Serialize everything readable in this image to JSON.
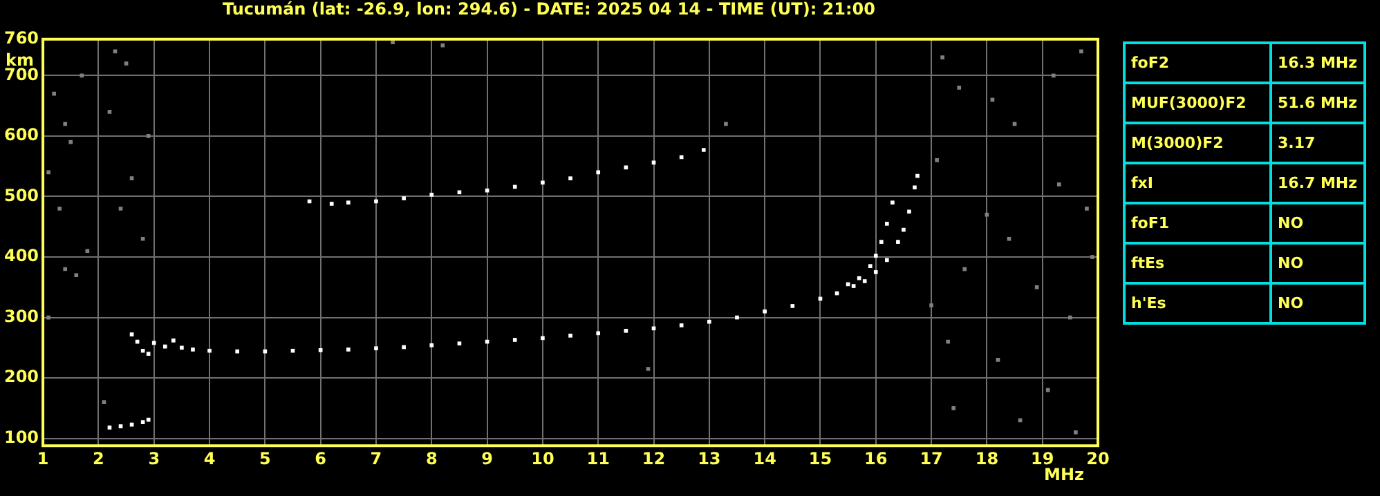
{
  "chart_data": [
    {
      "type": "scatter",
      "title": "Tucumán (lat: -26.9, lon: 294.6) - DATE: 2025 04 14 - TIME (UT): 21:00",
      "xlabel": "MHz",
      "ylabel": "km",
      "xlim": [
        1,
        20
      ],
      "xticks": [
        1,
        2,
        3,
        4,
        5,
        6,
        7,
        8,
        9,
        10,
        11,
        12,
        13,
        14,
        15,
        16,
        17,
        18,
        19,
        20
      ],
      "ylim": [
        88,
        760
      ],
      "yticks": [
        100,
        200,
        300,
        400,
        500,
        600,
        700,
        760
      ],
      "grid": true,
      "legend": false,
      "marker": "square",
      "series": [
        {
          "color": "#ffffff",
          "x": [
            3.0,
            3.2,
            3.35,
            3.5,
            3.7,
            4.0,
            4.5,
            5.0,
            5.5,
            6.0,
            6.5,
            7.0,
            7.5,
            8.0,
            8.5,
            9.0,
            9.5,
            10.0,
            10.5,
            11.0,
            11.5,
            12.0,
            12.5,
            13.0,
            13.5,
            14.0,
            14.5,
            15.0,
            15.3,
            15.5,
            15.7,
            15.9,
            16.0,
            16.1,
            16.2,
            16.3
          ],
          "values": [
            258,
            252,
            262,
            250,
            247,
            245,
            244,
            244,
            245,
            246,
            247,
            249,
            251,
            254,
            257,
            260,
            263,
            266,
            270,
            274,
            278,
            282,
            287,
            293,
            300,
            310,
            319,
            331,
            340,
            355,
            365,
            385,
            402,
            425,
            455,
            490
          ]
        },
        {
          "color": "#ffffff",
          "x": [
            15.6,
            15.8,
            16.0,
            16.2,
            16.4,
            16.5,
            16.6,
            16.7,
            16.75
          ],
          "values": [
            352,
            360,
            375,
            395,
            425,
            445,
            475,
            515,
            534
          ]
        },
        {
          "color": "#ffffff",
          "x": [
            5.8,
            6.2,
            6.5,
            7.0,
            7.5,
            8.0,
            8.5,
            9.0,
            9.5,
            10.0,
            10.5,
            11.0,
            11.5,
            12.0,
            12.5,
            12.9
          ],
          "values": [
            492,
            488,
            490,
            492,
            497,
            503,
            507,
            510,
            516,
            523,
            530,
            540,
            548,
            556,
            565,
            577
          ]
        },
        {
          "color": "#ffffff",
          "x": [
            2.2,
            2.4,
            2.6,
            2.8,
            2.9,
            2.6,
            2.7,
            2.8,
            2.9
          ],
          "values": [
            118,
            120,
            123,
            127,
            131,
            272,
            260,
            245,
            240
          ]
        },
        {
          "color": "#808080",
          "x": [
            1.2,
            1.4,
            1.1,
            1.5,
            1.3,
            1.7,
            2.3,
            2.5,
            1.8,
            1.4,
            2.2,
            2.6,
            2.9,
            1.1,
            2.1,
            1.6,
            2.4,
            2.8,
            17.2,
            17.5,
            18.1,
            18.5,
            19.2,
            19.7,
            17.1,
            18.0,
            18.4,
            19.3,
            19.8,
            17.6,
            18.9,
            19.5,
            17.3,
            18.2,
            19.1,
            17.4,
            18.6,
            19.6,
            17.0,
            19.9,
            11.9,
            7.3,
            8.2,
            13.3
          ],
          "values": [
            670,
            620,
            540,
            590,
            480,
            700,
            740,
            720,
            410,
            380,
            640,
            530,
            600,
            300,
            160,
            370,
            480,
            430,
            730,
            680,
            660,
            620,
            700,
            740,
            560,
            470,
            430,
            520,
            480,
            380,
            350,
            300,
            260,
            230,
            180,
            150,
            130,
            110,
            320,
            400,
            215,
            755,
            750,
            620
          ]
        }
      ]
    },
    {
      "type": "other",
      "annotations": [
        "foF2",
        "16.3 MHz",
        "MUF(3000)F2",
        "51.6 MHz",
        "M(3000)F2",
        "3.17",
        "fxI",
        "16.7 MHz",
        "foF1",
        "NO",
        "ftEs",
        "NO",
        "h'Es",
        "NO"
      ]
    }
  ]
}
